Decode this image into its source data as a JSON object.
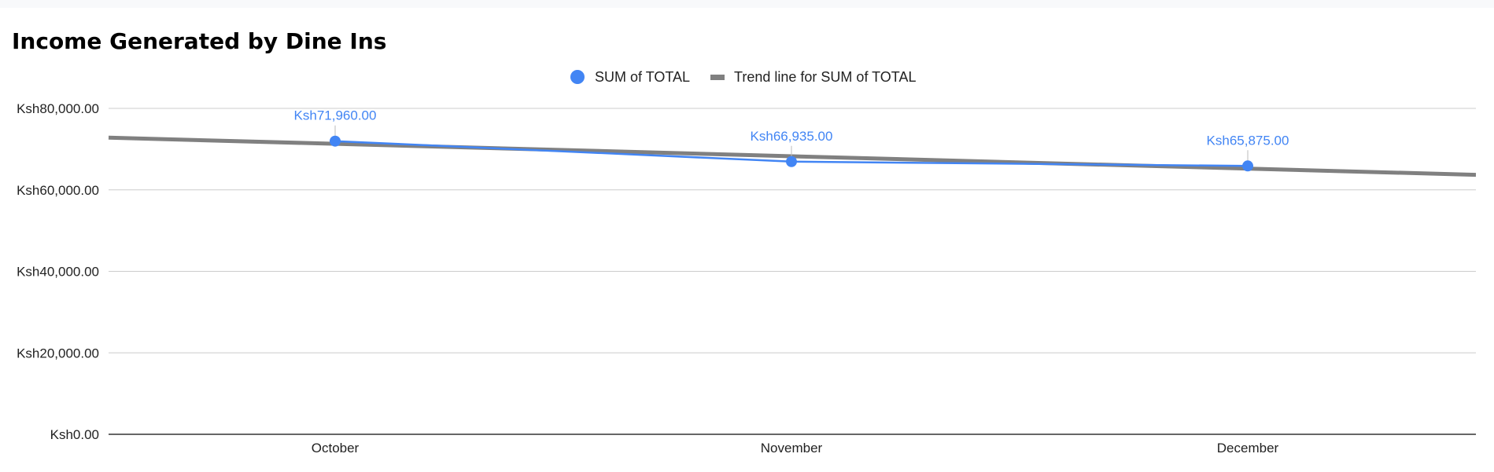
{
  "chart_data": {
    "type": "line",
    "title": "Income Generated by Dine Ins",
    "categories": [
      "October",
      "November",
      "December"
    ],
    "series": [
      {
        "name": "SUM of TOTAL",
        "values": [
          71960,
          66935,
          65875
        ],
        "data_labels": [
          "Ksh71,960.00",
          "Ksh66,935.00",
          "Ksh65,875.00"
        ],
        "color": "#4285f4"
      }
    ],
    "trendline": {
      "name": "Trend line for SUM of TOTAL",
      "type": "linear",
      "color": "#808080"
    },
    "y_ticks": [
      0,
      20000,
      40000,
      60000,
      80000
    ],
    "y_tick_labels": [
      "Ksh0.00",
      "Ksh20,000.00",
      "Ksh40,000.00",
      "Ksh60,000.00",
      "Ksh80,000.00"
    ],
    "ylim": [
      0,
      80000
    ],
    "grid": true,
    "legend_position": "top"
  }
}
